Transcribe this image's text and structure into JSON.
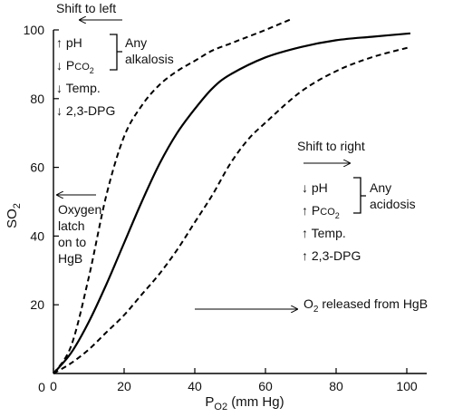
{
  "chart_data": {
    "type": "line",
    "xlabel": "Po2 (mm Hg)",
    "xlabel_main": "P",
    "xlabel_sub": "O2",
    "xlabel_rest": " (mm Hg)",
    "ylabel": "SO2",
    "ylabel_main": "SO",
    "ylabel_sub": "2",
    "xlim": [
      0,
      105
    ],
    "ylim": [
      0,
      100
    ],
    "x_ticks": [
      "0",
      "20",
      "40",
      "60",
      "80",
      "100"
    ],
    "y_ticks": [
      "20",
      "40",
      "60",
      "80",
      "100"
    ],
    "x_tick_values": [
      0,
      20,
      40,
      60,
      80,
      100
    ],
    "y_tick_values": [
      20,
      40,
      60,
      80,
      100
    ],
    "series": [
      {
        "style": "dashed",
        "x": [
          0,
          5,
          10,
          15,
          20,
          25,
          30,
          35,
          40,
          45,
          50,
          55,
          60,
          67
        ],
        "y": [
          0,
          8,
          28,
          52,
          69,
          78,
          84,
          88,
          91,
          94,
          96,
          98,
          100,
          103
        ]
      },
      {
        "style": "solid",
        "x": [
          0,
          5,
          10,
          15,
          20,
          25,
          30,
          35,
          40,
          45,
          50,
          60,
          70,
          80,
          90,
          101
        ],
        "y": [
          0,
          6,
          15,
          26,
          38,
          50,
          61,
          70,
          77,
          83,
          87,
          92,
          95,
          97,
          98,
          99
        ]
      },
      {
        "style": "dashed",
        "x": [
          0,
          5,
          10,
          15,
          20,
          25,
          30,
          35,
          40,
          45,
          50,
          55,
          60,
          70,
          80,
          90,
          101
        ],
        "y": [
          0,
          3,
          7,
          12,
          17,
          23,
          29,
          36,
          44,
          52,
          61,
          68,
          73,
          82,
          88,
          92,
          95
        ]
      }
    ]
  },
  "annotations": {
    "shift_left": "Shift to left",
    "shift_right": "Shift to right",
    "left_list": [
      {
        "arrow": "↑",
        "text": "pH"
      },
      {
        "arrow": "↓",
        "text": "P",
        "sub": "CO2",
        "is_pco2": true
      },
      {
        "arrow": "↓",
        "text": "Temp."
      },
      {
        "arrow": "↓",
        "text": "2,3-DPG"
      }
    ],
    "right_list": [
      {
        "arrow": "↓",
        "text": "pH"
      },
      {
        "arrow": "↑",
        "text": "P",
        "sub": "CO2",
        "is_pco2": true
      },
      {
        "arrow": "↑",
        "text": "Temp."
      },
      {
        "arrow": "↑",
        "text": "2,3-DPG"
      }
    ],
    "any_alkalosis": [
      "Any",
      "alkalosis"
    ],
    "any_acidosis": [
      "Any",
      "acidosis"
    ],
    "oxygen_latch": [
      "Oxygen",
      "latch",
      "on to",
      "HgB"
    ],
    "o2_released_main": "O",
    "o2_released_sub": "2",
    "o2_released_rest": " released from HgB"
  }
}
